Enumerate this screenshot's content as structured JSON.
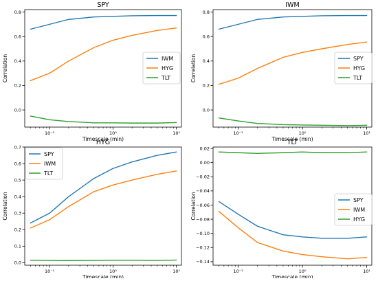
{
  "colors": {
    "blue": "#1f77b4",
    "orange": "#ff7f0e",
    "green": "#2ca02c"
  },
  "chart_data": [
    {
      "type": "line",
      "title": "SPY",
      "xlabel": "Timescale (min)",
      "ylabel": "Correlation",
      "xscale": "log",
      "xlim": [
        0.0406,
        12.0
      ],
      "ylim": [
        -0.14,
        0.82
      ],
      "xticks": [
        {
          "value": 0.1,
          "label": "10⁻¹"
        },
        {
          "value": 1,
          "label": "10⁰"
        },
        {
          "value": 10,
          "label": "10¹"
        }
      ],
      "yticks": [
        {
          "value": 0.0,
          "label": "0.0"
        },
        {
          "value": 0.2,
          "label": "0.2"
        },
        {
          "value": 0.4,
          "label": "0.4"
        },
        {
          "value": 0.6,
          "label": "0.6"
        },
        {
          "value": 0.8,
          "label": "0.8"
        }
      ],
      "legend_position": "center-right",
      "x": [
        0.05,
        0.1,
        0.2,
        0.5,
        1,
        2,
        5,
        10
      ],
      "series": [
        {
          "name": "IWM",
          "color": "blue",
          "values": [
            0.66,
            0.7,
            0.74,
            0.76,
            0.765,
            0.77,
            0.772,
            0.772
          ]
        },
        {
          "name": "HYG",
          "color": "orange",
          "values": [
            0.24,
            0.3,
            0.4,
            0.51,
            0.57,
            0.61,
            0.65,
            0.67
          ]
        },
        {
          "name": "TLT",
          "color": "green",
          "values": [
            -0.05,
            -0.08,
            -0.095,
            -0.105,
            -0.105,
            -0.107,
            -0.107,
            -0.103
          ]
        }
      ]
    },
    {
      "type": "line",
      "title": "IWM",
      "xlabel": "Timescale (min)",
      "ylabel": "Correlation",
      "xscale": "log",
      "xlim": [
        0.0406,
        12.0
      ],
      "ylim": [
        -0.14,
        0.82
      ],
      "xticks": [
        {
          "value": 0.1,
          "label": "10⁻¹"
        },
        {
          "value": 1,
          "label": "10⁰"
        },
        {
          "value": 10,
          "label": "10¹"
        }
      ],
      "yticks": [
        {
          "value": 0.0,
          "label": "0.0"
        },
        {
          "value": 0.2,
          "label": "0.2"
        },
        {
          "value": 0.4,
          "label": "0.4"
        },
        {
          "value": 0.6,
          "label": "0.6"
        },
        {
          "value": 0.8,
          "label": "0.8"
        }
      ],
      "legend_position": "center-right",
      "x": [
        0.05,
        0.1,
        0.2,
        0.5,
        1,
        2,
        5,
        10
      ],
      "series": [
        {
          "name": "SPY",
          "color": "blue",
          "values": [
            0.66,
            0.7,
            0.74,
            0.76,
            0.765,
            0.77,
            0.772,
            0.772
          ]
        },
        {
          "name": "HYG",
          "color": "orange",
          "values": [
            0.21,
            0.26,
            0.34,
            0.43,
            0.47,
            0.5,
            0.535,
            0.555
          ]
        },
        {
          "name": "TLT",
          "color": "green",
          "values": [
            -0.065,
            -0.09,
            -0.11,
            -0.12,
            -0.123,
            -0.125,
            -0.128,
            -0.125
          ]
        }
      ]
    },
    {
      "type": "line",
      "title": "HYG",
      "xlabel": "Timescale (min)",
      "ylabel": "Correlation",
      "xscale": "log",
      "xlim": [
        0.0406,
        12.0
      ],
      "ylim": [
        -0.015,
        0.7
      ],
      "xticks": [
        {
          "value": 0.1,
          "label": "10⁻¹"
        },
        {
          "value": 1,
          "label": "10⁰"
        },
        {
          "value": 10,
          "label": "10¹"
        }
      ],
      "yticks": [
        {
          "value": 0.0,
          "label": "0.0"
        },
        {
          "value": 0.1,
          "label": "0.1"
        },
        {
          "value": 0.2,
          "label": "0.2"
        },
        {
          "value": 0.3,
          "label": "0.3"
        },
        {
          "value": 0.4,
          "label": "0.4"
        },
        {
          "value": 0.5,
          "label": "0.5"
        },
        {
          "value": 0.6,
          "label": "0.6"
        },
        {
          "value": 0.7,
          "label": "0.7"
        }
      ],
      "legend_position": "upper-left",
      "x": [
        0.05,
        0.1,
        0.2,
        0.5,
        1,
        2,
        5,
        10
      ],
      "series": [
        {
          "name": "SPY",
          "color": "blue",
          "values": [
            0.24,
            0.3,
            0.4,
            0.51,
            0.57,
            0.61,
            0.65,
            0.67
          ]
        },
        {
          "name": "IWM",
          "color": "orange",
          "values": [
            0.21,
            0.26,
            0.34,
            0.43,
            0.47,
            0.5,
            0.535,
            0.555
          ]
        },
        {
          "name": "TLT",
          "color": "green",
          "values": [
            0.015,
            0.014,
            0.013,
            0.014,
            0.015,
            0.015,
            0.014,
            0.016
          ]
        }
      ]
    },
    {
      "type": "line",
      "title": "TLT",
      "xlabel": "Timescale (min)",
      "ylabel": "Correlation",
      "xscale": "log",
      "xlim": [
        0.0406,
        12.0
      ],
      "ylim": [
        -0.145,
        0.022
      ],
      "xticks": [
        {
          "value": 0.1,
          "label": "10⁻¹"
        },
        {
          "value": 1,
          "label": "10⁰"
        },
        {
          "value": 10,
          "label": "10¹"
        }
      ],
      "yticks": [
        {
          "value": 0.02,
          "label": "0.02"
        },
        {
          "value": 0.0,
          "label": "0.00"
        },
        {
          "value": -0.02,
          "label": "−0.02"
        },
        {
          "value": -0.04,
          "label": "−0.04"
        },
        {
          "value": -0.06,
          "label": "−0.06"
        },
        {
          "value": -0.08,
          "label": "−0.08"
        },
        {
          "value": -0.1,
          "label": "−0.10"
        },
        {
          "value": -0.12,
          "label": "−0.12"
        },
        {
          "value": -0.14,
          "label": "−0.14"
        }
      ],
      "legend_position": "center-right",
      "x": [
        0.05,
        0.1,
        0.2,
        0.5,
        1,
        2,
        5,
        10
      ],
      "series": [
        {
          "name": "SPY",
          "color": "blue",
          "values": [
            -0.055,
            -0.073,
            -0.09,
            -0.102,
            -0.105,
            -0.107,
            -0.107,
            -0.105
          ]
        },
        {
          "name": "IWM",
          "color": "orange",
          "values": [
            -0.069,
            -0.092,
            -0.113,
            -0.125,
            -0.13,
            -0.133,
            -0.136,
            -0.134
          ]
        },
        {
          "name": "HYG",
          "color": "green",
          "values": [
            0.015,
            0.014,
            0.013,
            0.014,
            0.015,
            0.014,
            0.014,
            0.015
          ]
        }
      ]
    }
  ]
}
